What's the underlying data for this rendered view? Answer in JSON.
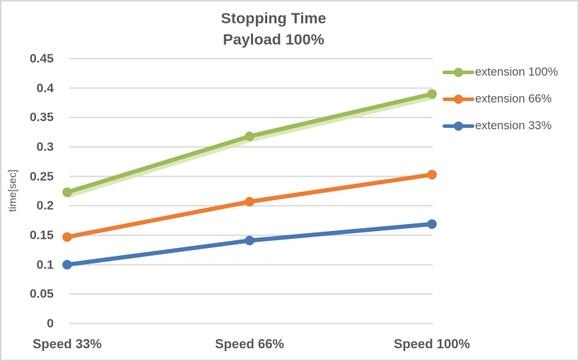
{
  "window": {
    "background": "#FFFFFF",
    "border_color": "#D7D7D7",
    "text_color": "#595959"
  },
  "chart_data": {
    "type": "line",
    "title": "Stopping Time",
    "subtitle": "Payload 100%",
    "categories": [
      "Speed 33%",
      "Speed 66%",
      "Speed 100%"
    ],
    "series": [
      {
        "name": "extension 100%",
        "color": "#9CBB59",
        "shadow_color": "#D9E6B3",
        "values": [
          0.223,
          0.318,
          0.39
        ]
      },
      {
        "name": "extension 66%",
        "color": "#ED7D31",
        "values": [
          0.147,
          0.207,
          0.253
        ]
      },
      {
        "name": "extension 33%",
        "color": "#4779B4",
        "values": [
          0.1,
          0.141,
          0.169
        ]
      }
    ],
    "xlabel": "",
    "ylabel": "time[sec]",
    "ylim": [
      0,
      0.45
    ],
    "ytick_step": 0.05,
    "grid": "horizontal-only",
    "grid_color": "#D9D9D9",
    "legend_position": "right",
    "marker": "circle"
  }
}
